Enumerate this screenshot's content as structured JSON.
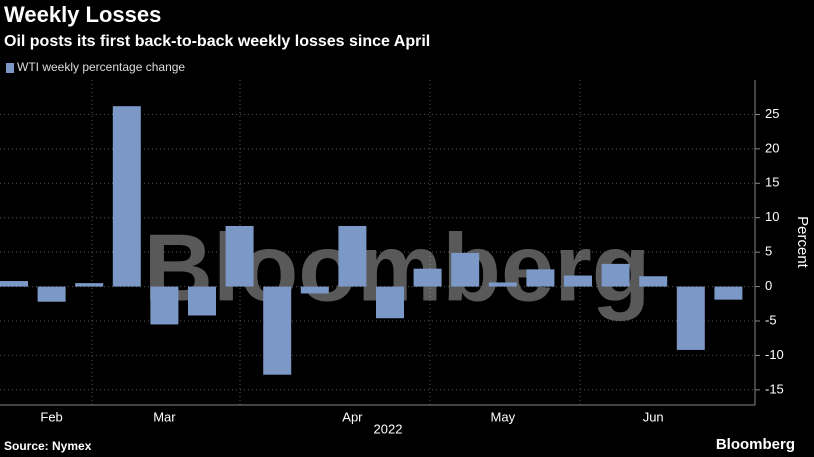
{
  "chart_data": {
    "type": "bar",
    "title": "Weekly Losses",
    "subtitle": "Oil posts its first back-to-back weekly losses since April",
    "series": [
      {
        "name": "WTI weekly percentage change",
        "color": "#7b98c6",
        "values": [
          0.8,
          -2.2,
          0.5,
          26.2,
          -5.5,
          -4.2,
          8.8,
          -12.8,
          -1.0,
          8.8,
          -4.6,
          2.6,
          4.9,
          0.6,
          2.5,
          1.6,
          3.3,
          1.5,
          -9.2,
          -1.9
        ]
      }
    ],
    "categories": [
      null,
      "Feb",
      null,
      null,
      "Mar",
      null,
      null,
      null,
      null,
      "Apr",
      null,
      null,
      null,
      "May",
      null,
      null,
      null,
      "Jun",
      null,
      null
    ],
    "x_axis_label": "2022",
    "y_axis_label": "Percent",
    "ylim": [
      -17.2,
      30
    ],
    "yticks": [
      -15,
      -10,
      -5,
      0,
      5,
      10,
      15,
      20,
      25
    ],
    "grid": true,
    "watermark": "Bloomberg",
    "source": "Source: Nymex",
    "logo": "Bloomberg"
  }
}
